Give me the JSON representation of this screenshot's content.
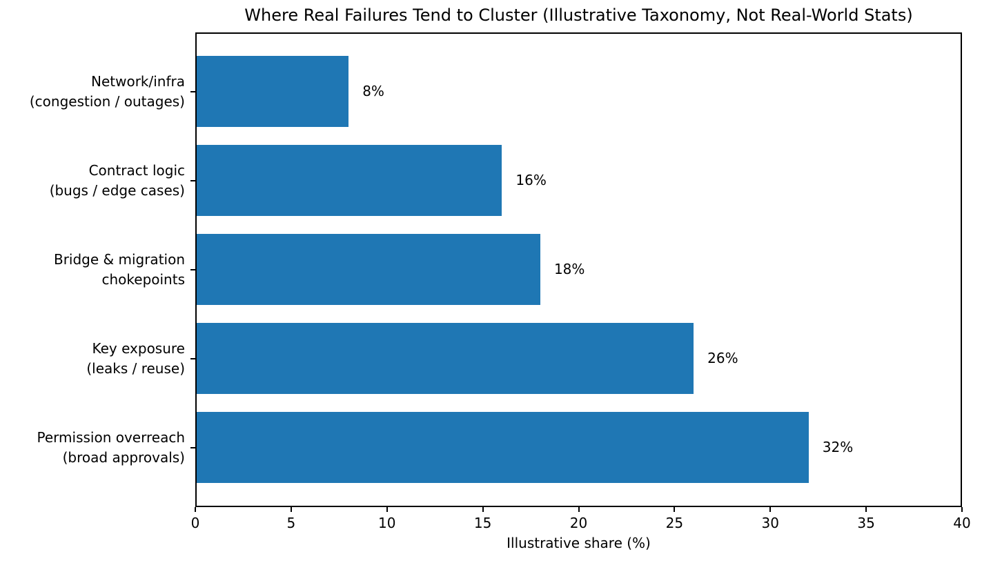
{
  "chart_data": {
    "type": "bar",
    "orientation": "horizontal",
    "title": "Where Real Failures Tend to Cluster (Illustrative Taxonomy, Not Real-World Stats)",
    "xlabel": "Illustrative share (%)",
    "ylabel": "",
    "categories": [
      "Network/infra\n(congestion / outages)",
      "Contract logic\n(bugs / edge cases)",
      "Bridge & migration\nchokepoints",
      "Key exposure\n(leaks / reuse)",
      "Permission overreach\n(broad approvals)"
    ],
    "values": [
      8,
      16,
      18,
      26,
      32
    ],
    "value_labels": [
      "8%",
      "16%",
      "18%",
      "26%",
      "32%"
    ],
    "xlim": [
      0,
      40
    ],
    "xticks": [
      0,
      5,
      10,
      15,
      20,
      25,
      30,
      35,
      40
    ],
    "xtick_labels": [
      "0",
      "5",
      "10",
      "15",
      "20",
      "25",
      "30",
      "35",
      "40"
    ],
    "grid": false,
    "legend": null,
    "colors": {
      "bar": "#1f77b4",
      "text": "#000000",
      "background": "#ffffff",
      "spine": "#000000"
    }
  }
}
